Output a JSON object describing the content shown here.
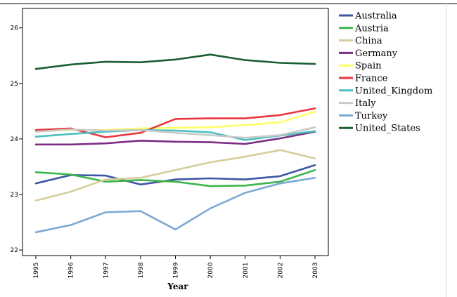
{
  "chart_data": {
    "type": "line",
    "title": "",
    "xlabel": "Year",
    "ylabel": "",
    "x": [
      "1995",
      "1996",
      "1997",
      "1998",
      "1999",
      "2000",
      "2001",
      "2002",
      "2003"
    ],
    "yticks": [
      "22",
      "23",
      "24",
      "25",
      "26"
    ],
    "ylim": [
      21.9,
      26.35
    ],
    "grid": false,
    "legend_position": "right",
    "series": [
      {
        "name": "Australia",
        "color": "#3d56a6",
        "values": [
          23.2,
          23.35,
          23.34,
          23.18,
          23.27,
          23.29,
          23.27,
          23.33,
          23.53
        ]
      },
      {
        "name": "Austria",
        "color": "#3cb54a",
        "values": [
          23.4,
          23.36,
          23.23,
          23.26,
          23.23,
          23.15,
          23.16,
          23.23,
          23.44
        ]
      },
      {
        "name": "China",
        "color": "#d4cf9a",
        "values": [
          22.89,
          23.05,
          23.27,
          23.3,
          23.44,
          23.58,
          23.68,
          23.8,
          23.65
        ]
      },
      {
        "name": "Germany",
        "color": "#7b2c83",
        "values": [
          23.9,
          23.9,
          23.92,
          23.97,
          23.95,
          23.94,
          23.91,
          24.01,
          24.13
        ]
      },
      {
        "name": "Spain",
        "color": "#ffff66",
        "values": [
          24.14,
          24.16,
          24.16,
          24.19,
          24.2,
          24.21,
          24.25,
          24.3,
          24.49
        ]
      },
      {
        "name": "France",
        "color": "#e8363d",
        "values": [
          24.16,
          24.19,
          24.03,
          24.11,
          24.36,
          24.37,
          24.37,
          24.43,
          24.55
        ]
      },
      {
        "name": "United_Kingdom",
        "color": "#4bbfc0",
        "values": [
          24.04,
          24.09,
          24.13,
          24.16,
          24.15,
          24.12,
          23.98,
          24.06,
          24.14
        ]
      },
      {
        "name": "Italy",
        "color": "#c9c9c9",
        "values": [
          24.13,
          24.17,
          24.15,
          24.16,
          24.11,
          24.07,
          24.02,
          24.07,
          24.21
        ]
      },
      {
        "name": "Turkey",
        "color": "#7aaad6",
        "values": [
          22.32,
          22.45,
          22.68,
          22.7,
          22.37,
          22.75,
          23.03,
          23.2,
          23.3
        ]
      },
      {
        "name": "United_States",
        "color": "#1b5e32",
        "values": [
          25.26,
          25.34,
          25.39,
          25.38,
          25.43,
          25.52,
          25.42,
          25.37,
          25.35
        ]
      }
    ]
  }
}
